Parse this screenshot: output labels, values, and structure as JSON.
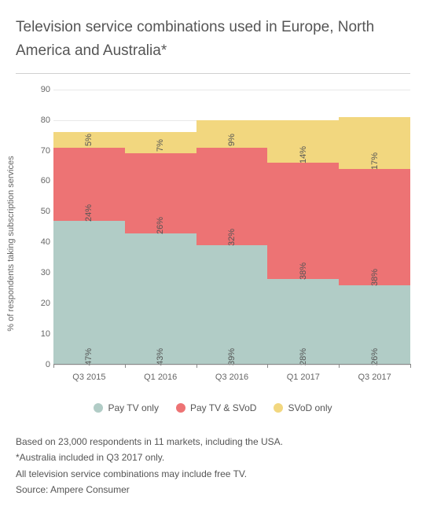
{
  "title": "Television service combinations used in Europe, North America and Australia*",
  "chart": {
    "type": "stacked-bar",
    "y_axis_label": "% of respondents taking subscription services",
    "ylim": [
      0,
      90
    ],
    "ytick_step": 10,
    "background_color": "#ffffff",
    "grid_color": "#e8e8e8",
    "axis_color": "#888888",
    "categories": [
      "Q3 2015",
      "Q1 2016",
      "Q3 2016",
      "Q1 2017",
      "Q3 2017"
    ],
    "series": [
      {
        "name": "Pay TV only",
        "color": "#b1ccc6",
        "values": [
          47,
          43,
          39,
          28,
          26
        ]
      },
      {
        "name": "Pay TV & SVoD",
        "color": "#ed7374",
        "values": [
          24,
          26,
          32,
          38,
          38
        ]
      },
      {
        "name": "SVoD only",
        "color": "#f2d77f",
        "values": [
          5,
          7,
          9,
          14,
          17
        ]
      }
    ],
    "label_suffix": "%",
    "label_fontsize": 11,
    "title_fontsize": 19
  },
  "legend": {
    "items": [
      {
        "label": "Pay TV only",
        "color": "#b1ccc6"
      },
      {
        "label": "Pay TV & SVoD",
        "color": "#ed7374"
      },
      {
        "label": "SVoD only",
        "color": "#f2d77f"
      }
    ]
  },
  "footnotes": [
    "Based on 23,000 respondents in 11 markets, including the USA.",
    "*Australia included in Q3 2017 only.",
    "All television service combinations may include free TV.",
    "Source: Ampere Consumer"
  ]
}
